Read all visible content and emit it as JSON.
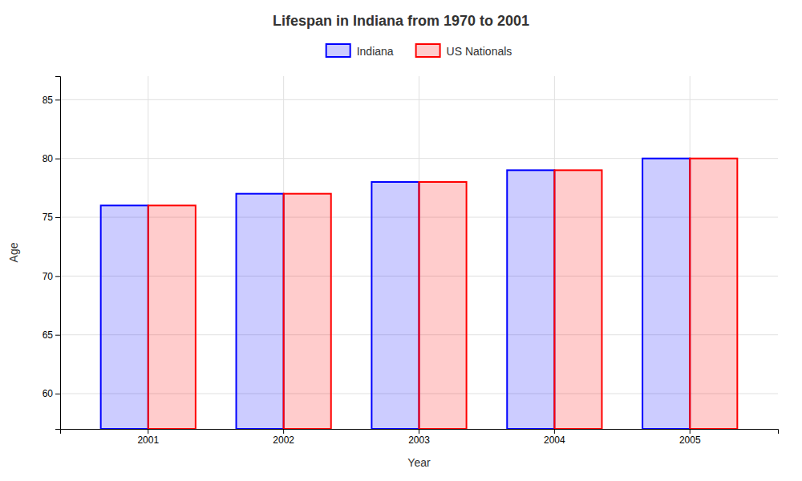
{
  "chart_data": {
    "type": "bar",
    "title": "Lifespan in Indiana from 1970 to 2001",
    "x_label": "Year",
    "y_label": "Age",
    "categories": [
      "2001",
      "2002",
      "2003",
      "2004",
      "2005"
    ],
    "series": [
      {
        "name": "Indiana",
        "color": "#0000ff",
        "values": [
          76,
          77,
          78,
          79,
          80
        ]
      },
      {
        "name": "US Nationals",
        "color": "#ff0000",
        "values": [
          76,
          77,
          78,
          79,
          80
        ]
      }
    ],
    "ylim": [
      57,
      87
    ],
    "yticks": [
      60,
      65,
      70,
      75,
      80,
      85
    ],
    "grid": true,
    "legend": "top"
  }
}
